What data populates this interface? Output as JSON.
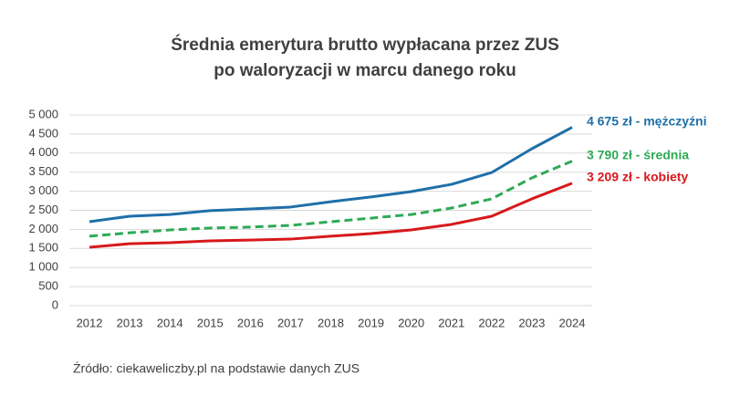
{
  "chart_data": {
    "type": "line",
    "title": [
      "Średnia emerytura brutto wypłacana przez ZUS",
      "po waloryzacji w marcu danego roku"
    ],
    "source": "Źródło: ciekaweliczby.pl na podstawie danych ZUS",
    "categories": [
      "2012",
      "2013",
      "2014",
      "2015",
      "2016",
      "2017",
      "2018",
      "2019",
      "2020",
      "2021",
      "2022",
      "2023",
      "2024"
    ],
    "ylim": [
      0,
      5000
    ],
    "yticks": [
      0,
      500,
      {
        "value": 1000,
        "label": "1 000"
      },
      {
        "value": 1500,
        "label": "1 500"
      },
      {
        "value": 2000,
        "label": "2 000"
      },
      {
        "value": 2500,
        "label": "2 500"
      },
      {
        "value": 3000,
        "label": "3 000"
      },
      {
        "value": 3500,
        "label": "3 500"
      },
      {
        "value": 4000,
        "label": "4 000"
      },
      {
        "value": 4500,
        "label": "4 500"
      },
      {
        "value": 5000,
        "label": "5 000"
      }
    ],
    "grid": true,
    "series": [
      {
        "color": "#1f6fa8",
        "dash": false,
        "values": [
          2200,
          2345,
          2390,
          2490,
          2535,
          2585,
          2725,
          2850,
          2990,
          3180,
          3490,
          4115,
          4675
        ],
        "value_labels": [
          null,
          null,
          null,
          null,
          null,
          null,
          null,
          null,
          null,
          null,
          null,
          null,
          "4 675 zł - mężczyźni"
        ]
      },
      {
        "color": "#2eaa55",
        "dash": true,
        "values": [
          1820,
          1910,
          1985,
          2035,
          2060,
          2105,
          2200,
          2295,
          2390,
          2560,
          2800,
          3350,
          3790
        ],
        "value_labels": [
          null,
          null,
          null,
          null,
          null,
          null,
          null,
          null,
          null,
          null,
          null,
          null,
          "3 790 zł - średnia"
        ]
      },
      {
        "color": "#d7191c",
        "dash": false,
        "values": [
          1530,
          1625,
          1650,
          1700,
          1720,
          1745,
          1820,
          1890,
          1985,
          2130,
          2345,
          2800,
          3209
        ],
        "value_labels": [
          null,
          null,
          null,
          null,
          null,
          null,
          null,
          null,
          null,
          null,
          null,
          null,
          "3 209 zł -  kobiety"
        ]
      }
    ]
  }
}
